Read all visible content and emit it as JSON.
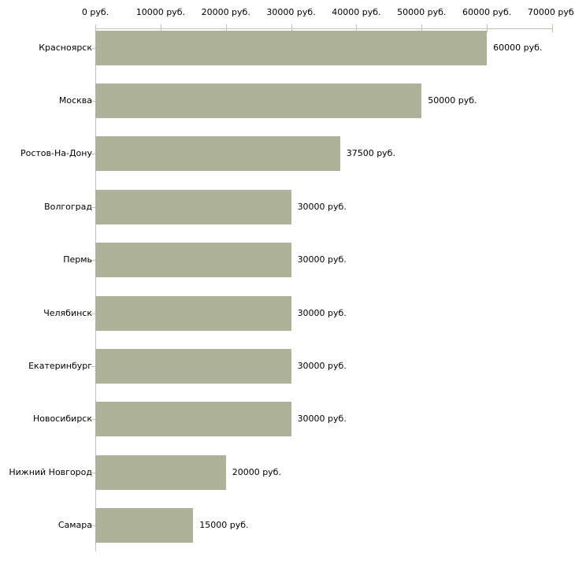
{
  "chart_data": {
    "type": "bar",
    "orientation": "horizontal",
    "title": "",
    "xlabel": "",
    "ylabel": "",
    "categories": [
      "Красноярск",
      "Москва",
      "Ростов-На-Дону",
      "Волгоград",
      "Пермь",
      "Челябинск",
      "Екатеринбург",
      "Новосибирск",
      "Нижний Новгород",
      "Самара"
    ],
    "values": [
      60000,
      50000,
      37500,
      30000,
      30000,
      30000,
      30000,
      30000,
      20000,
      15000
    ],
    "value_labels": [
      "60000 руб.",
      "50000 руб.",
      "37500 руб.",
      "30000 руб.",
      "30000 руб.",
      "30000 руб.",
      "30000 руб.",
      "30000 руб.",
      "20000 руб.",
      "15000 руб."
    ],
    "x_tick_values": [
      0,
      10000,
      20000,
      30000,
      40000,
      50000,
      60000,
      70000
    ],
    "x_tick_labels": [
      "0 руб.",
      "10000 руб.",
      "20000 руб.",
      "30000 руб.",
      "40000 руб.",
      "50000 руб.",
      "60000 руб.",
      "70000 руб."
    ],
    "xlim": [
      0,
      70000
    ],
    "grid": false,
    "legend": false,
    "colors": {
      "bar_fill": "#adb299",
      "axis_line": "#c0c0c0",
      "tick_mark": "#c6c6a2",
      "text": "#000000",
      "background": "#ffffff"
    }
  }
}
